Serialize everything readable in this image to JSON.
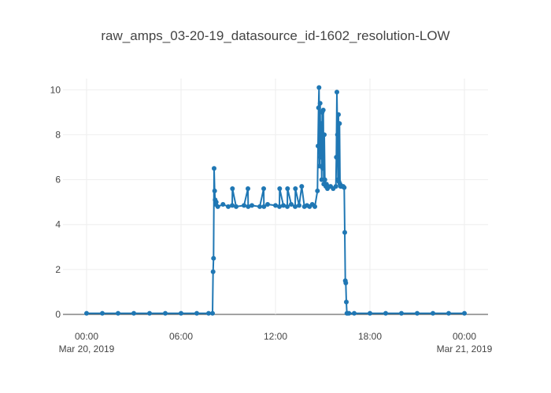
{
  "chart_data": {
    "type": "line",
    "title": "raw_amps_03-20-19_datasource_id-1602_resolution-LOW",
    "xlabel": "",
    "ylabel": "",
    "x_axis": {
      "type": "date",
      "range": [
        "2019-03-20T00:00",
        "2019-03-21T00:00"
      ],
      "ticks": [
        {
          "value": "2019-03-20T00:00",
          "label": "00:00",
          "sublabel": "Mar 20, 2019"
        },
        {
          "value": "2019-03-20T06:00",
          "label": "06:00",
          "sublabel": ""
        },
        {
          "value": "2019-03-20T12:00",
          "label": "12:00",
          "sublabel": ""
        },
        {
          "value": "2019-03-20T18:00",
          "label": "18:00",
          "sublabel": ""
        },
        {
          "value": "2019-03-21T00:00",
          "label": "00:00",
          "sublabel": "Mar 21, 2019"
        }
      ]
    },
    "y_axis": {
      "range": [
        0,
        10.5
      ],
      "ticks": [
        0,
        2,
        4,
        6,
        8,
        10
      ]
    },
    "grid": true,
    "legend": "none",
    "color": "#1f77b4",
    "series": [
      {
        "markers": true,
        "x": [
          "2019-03-20T00:00",
          "2019-03-20T01:00",
          "2019-03-20T02:00",
          "2019-03-20T03:00",
          "2019-03-20T04:00",
          "2019-03-20T05:00",
          "2019-03-20T06:00",
          "2019-03-20T07:00",
          "2019-03-20T07:45",
          "2019-03-20T08:00",
          "2019-03-20T08:02",
          "2019-03-20T08:04",
          "2019-03-20T08:06",
          "2019-03-20T08:08",
          "2019-03-20T08:10",
          "2019-03-20T08:12",
          "2019-03-20T08:14",
          "2019-03-20T08:20",
          "2019-03-20T08:40",
          "2019-03-20T09:00",
          "2019-03-20T09:15",
          "2019-03-20T09:16",
          "2019-03-20T09:30",
          "2019-03-20T10:00",
          "2019-03-20T10:15",
          "2019-03-20T10:16",
          "2019-03-20T10:30",
          "2019-03-20T11:00",
          "2019-03-20T11:15",
          "2019-03-20T11:16",
          "2019-03-20T11:30",
          "2019-03-20T12:00",
          "2019-03-20T12:15",
          "2019-03-20T12:16",
          "2019-03-20T12:30",
          "2019-03-20T12:45",
          "2019-03-20T12:46",
          "2019-03-20T13:00",
          "2019-03-20T13:15",
          "2019-03-20T13:16",
          "2019-03-20T13:30",
          "2019-03-20T13:40",
          "2019-03-20T13:50",
          "2019-03-20T14:00",
          "2019-03-20T14:10",
          "2019-03-20T14:20",
          "2019-03-20T14:30",
          "2019-03-20T14:40",
          "2019-03-20T14:42",
          "2019-03-20T14:44",
          "2019-03-20T14:46",
          "2019-03-20T14:48",
          "2019-03-20T14:50",
          "2019-03-20T14:52",
          "2019-03-20T14:54",
          "2019-03-20T14:56",
          "2019-03-20T14:58",
          "2019-03-20T15:00",
          "2019-03-20T15:02",
          "2019-03-20T15:04",
          "2019-03-20T15:06",
          "2019-03-20T15:08",
          "2019-03-20T15:10",
          "2019-03-20T15:12",
          "2019-03-20T15:14",
          "2019-03-20T15:16",
          "2019-03-20T15:18",
          "2019-03-20T15:20",
          "2019-03-20T15:30",
          "2019-03-20T15:40",
          "2019-03-20T15:50",
          "2019-03-20T15:52",
          "2019-03-20T15:54",
          "2019-03-20T15:56",
          "2019-03-20T15:58",
          "2019-03-20T16:00",
          "2019-03-20T16:02",
          "2019-03-20T16:04",
          "2019-03-20T16:06",
          "2019-03-20T16:08",
          "2019-03-20T16:10",
          "2019-03-20T16:14",
          "2019-03-20T16:18",
          "2019-03-20T16:22",
          "2019-03-20T16:24",
          "2019-03-20T16:26",
          "2019-03-20T16:28",
          "2019-03-20T16:30",
          "2019-03-20T16:32",
          "2019-03-20T16:34",
          "2019-03-20T16:40",
          "2019-03-20T17:00",
          "2019-03-20T18:00",
          "2019-03-20T19:00",
          "2019-03-20T20:00",
          "2019-03-20T21:00",
          "2019-03-20T22:00",
          "2019-03-20T23:00",
          "2019-03-21T00:00"
        ],
        "y": [
          0.05,
          0.05,
          0.05,
          0.05,
          0.05,
          0.05,
          0.05,
          0.05,
          0.05,
          0.05,
          1.9,
          2.5,
          6.5,
          5.5,
          5.1,
          4.9,
          5.0,
          4.8,
          4.9,
          4.8,
          4.85,
          5.6,
          4.8,
          4.85,
          5.6,
          4.8,
          4.85,
          4.8,
          5.6,
          4.8,
          4.9,
          4.85,
          4.8,
          5.6,
          4.85,
          4.8,
          5.6,
          4.9,
          4.8,
          5.6,
          4.85,
          5.7,
          4.8,
          4.85,
          4.8,
          4.9,
          4.8,
          5.5,
          7.5,
          9.2,
          10.1,
          6.6,
          9.4,
          7.0,
          8.5,
          6.0,
          9.0,
          6.5,
          9.1,
          5.8,
          8.0,
          6.0,
          5.8,
          5.7,
          5.8,
          5.7,
          5.6,
          5.7,
          5.7,
          5.6,
          5.7,
          7.0,
          9.9,
          8.0,
          6.0,
          8.9,
          5.9,
          8.5,
          5.8,
          5.7,
          5.7,
          5.7,
          5.7,
          5.65,
          3.65,
          1.5,
          1.4,
          0.55,
          0.05,
          0.05,
          0.05,
          0.05,
          0.05,
          0.05,
          0.05,
          0.05,
          0.05,
          0.05,
          0.05
        ]
      }
    ]
  }
}
